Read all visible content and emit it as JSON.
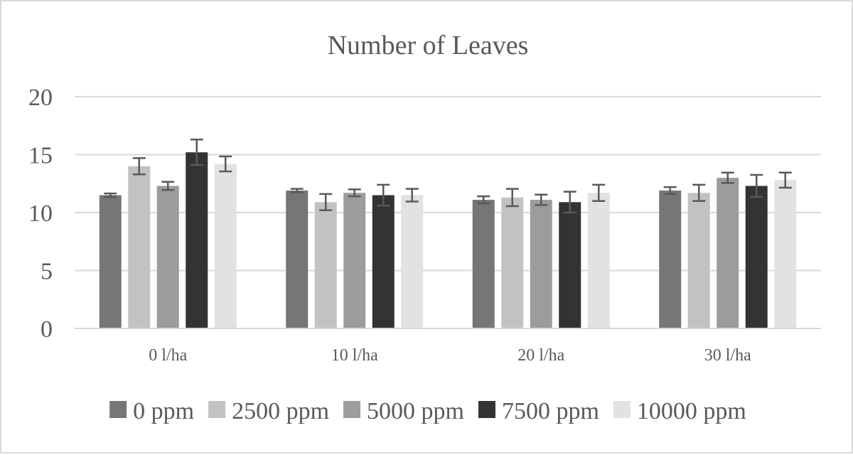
{
  "chart_data": {
    "type": "bar",
    "title": "Number of Leaves",
    "xlabel": "",
    "ylabel": "",
    "categories": [
      "0 l/ha",
      "10 l/ha",
      "20 l/ha",
      "30 l/ha"
    ],
    "series": [
      {
        "name": "0 ppm",
        "color": "#767676",
        "values": [
          11.5,
          11.9,
          11.1,
          11.9
        ],
        "errors": [
          0.15,
          0.15,
          0.3,
          0.3
        ]
      },
      {
        "name": "2500 ppm",
        "color": "#c2c2c2",
        "values": [
          14.0,
          10.9,
          11.3,
          11.7
        ],
        "errors": [
          0.7,
          0.7,
          0.75,
          0.7
        ]
      },
      {
        "name": "5000 ppm",
        "color": "#9c9c9c",
        "values": [
          12.3,
          11.7,
          11.1,
          13.0
        ],
        "errors": [
          0.35,
          0.3,
          0.45,
          0.45
        ]
      },
      {
        "name": "7500 ppm",
        "color": "#333333",
        "values": [
          15.2,
          11.5,
          10.9,
          12.3
        ],
        "errors": [
          1.1,
          0.9,
          0.9,
          0.95
        ]
      },
      {
        "name": "10000 ppm",
        "color": "#e2e2e2",
        "values": [
          14.2,
          11.5,
          11.7,
          12.8
        ],
        "errors": [
          0.65,
          0.55,
          0.7,
          0.65
        ]
      }
    ],
    "ylim": [
      0,
      20
    ],
    "yticks": [
      0,
      5,
      10,
      15,
      20
    ],
    "grid": true,
    "legend_position": "bottom",
    "error_bar_color": "#595959"
  }
}
